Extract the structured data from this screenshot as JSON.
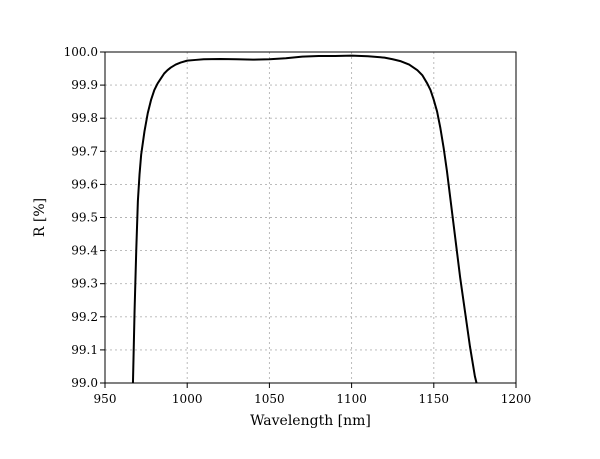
{
  "chart_data": {
    "type": "line",
    "title": "",
    "xlabel": "Wavelength [nm]",
    "ylabel": "R [%]",
    "xlim": [
      950,
      1200
    ],
    "ylim": [
      99.0,
      100.0
    ],
    "x_ticks": [
      950,
      1000,
      1050,
      1100,
      1150,
      1200
    ],
    "x_tick_labels": [
      "950",
      "1000",
      "1050",
      "1100",
      "1150",
      "1200"
    ],
    "y_ticks": [
      99.0,
      99.1,
      99.2,
      99.3,
      99.4,
      99.5,
      99.6,
      99.7,
      99.8,
      99.9,
      100.0
    ],
    "y_tick_labels": [
      "99.0",
      "99.1",
      "99.2",
      "99.3",
      "99.4",
      "99.5",
      "99.6",
      "99.7",
      "99.8",
      "99.9",
      "100.0"
    ],
    "grid": true,
    "legend": "none",
    "line_color": "#000000",
    "grid_color": "#b3b3b3",
    "series": [
      {
        "x": [
          967,
          968,
          969,
          970,
          971,
          972,
          974,
          976,
          978,
          980,
          982,
          984,
          986,
          988,
          990,
          993,
          996,
          1000,
          1005,
          1010,
          1020,
          1030,
          1040,
          1050,
          1060,
          1070,
          1080,
          1090,
          1100,
          1110,
          1120,
          1125,
          1130,
          1135,
          1140,
          1143,
          1146,
          1148,
          1150,
          1152,
          1154,
          1156,
          1158,
          1160,
          1162,
          1164,
          1166,
          1168,
          1170,
          1172,
          1174,
          1175,
          1176
        ],
        "y": [
          99.0,
          99.22,
          99.4,
          99.55,
          99.63,
          99.69,
          99.76,
          99.815,
          99.855,
          99.885,
          99.905,
          99.92,
          99.935,
          99.945,
          99.953,
          99.962,
          99.968,
          99.974,
          99.976,
          99.978,
          99.979,
          99.978,
          99.977,
          99.978,
          99.981,
          99.986,
          99.988,
          99.988,
          99.989,
          99.987,
          99.983,
          99.978,
          99.972,
          99.962,
          99.945,
          99.93,
          99.905,
          99.885,
          99.855,
          99.82,
          99.77,
          99.71,
          99.64,
          99.56,
          99.48,
          99.4,
          99.32,
          99.25,
          99.18,
          99.11,
          99.05,
          99.02,
          99.0
        ]
      }
    ]
  }
}
